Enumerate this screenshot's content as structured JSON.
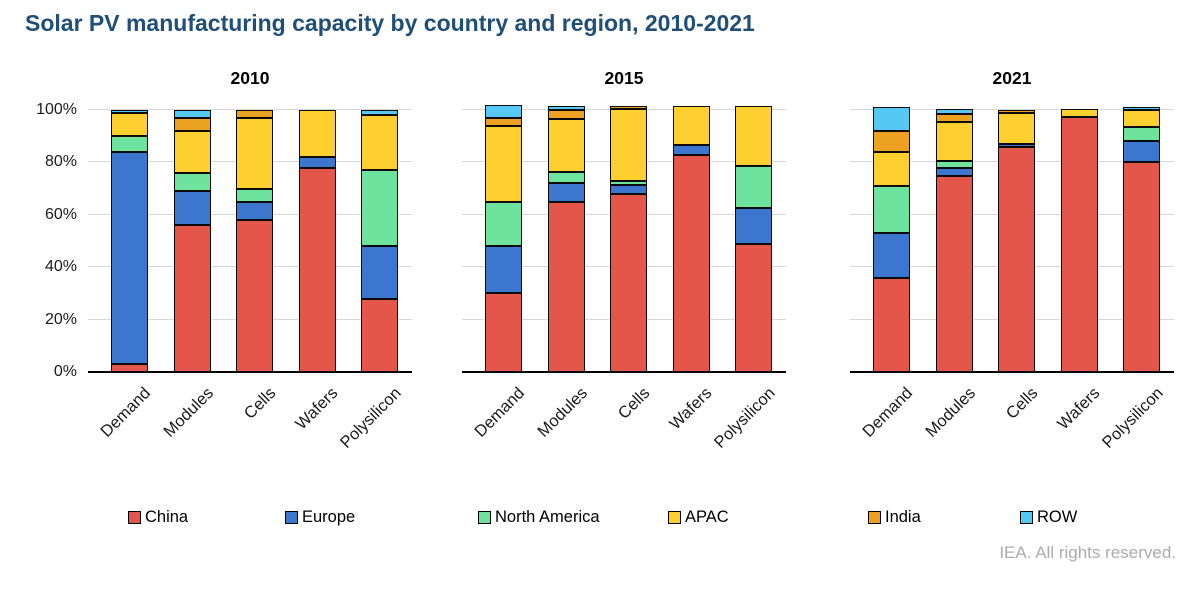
{
  "page": {
    "title": "Solar PV manufacturing capacity by country and region, 2010-2021",
    "title_color": "#1F4E79",
    "footer": "IEA. All rights reserved."
  },
  "legend": {
    "position": "bottom",
    "items": [
      {
        "label": "China",
        "color": "#E4564A"
      },
      {
        "label": "Europe",
        "color": "#3D76CE"
      },
      {
        "label": "North America",
        "color": "#6DE39E"
      },
      {
        "label": "APAC",
        "color": "#FDD02F"
      },
      {
        "label": "India",
        "color": "#EDA120"
      },
      {
        "label": "ROW",
        "color": "#56C8F4"
      }
    ]
  },
  "chart_data": [
    {
      "type": "bar",
      "stacked": true,
      "title": "2010",
      "unit": "%",
      "xlabel": "",
      "ylabel": "",
      "ylim": [
        0,
        100
      ],
      "yticks": [
        0,
        20,
        40,
        60,
        80,
        100
      ],
      "grid": true,
      "categories": [
        "Demand",
        "Modules",
        "Cells",
        "Wafers",
        "Polysilicon"
      ],
      "series": [
        {
          "name": "China",
          "color": "#E4564A",
          "values": [
            3,
            56,
            58,
            78,
            28
          ]
        },
        {
          "name": "Europe",
          "color": "#3D76CE",
          "values": [
            81,
            13,
            7,
            4,
            20
          ]
        },
        {
          "name": "North America",
          "color": "#6DE39E",
          "values": [
            6,
            7,
            5,
            0,
            29
          ]
        },
        {
          "name": "APAC",
          "color": "#FDD02F",
          "values": [
            9,
            16,
            27,
            18,
            21
          ]
        },
        {
          "name": "India",
          "color": "#EDA120",
          "values": [
            0,
            5,
            3,
            0,
            0
          ]
        },
        {
          "name": "ROW",
          "color": "#56C8F4",
          "values": [
            1,
            3,
            0,
            0,
            2
          ]
        }
      ]
    },
    {
      "type": "bar",
      "stacked": true,
      "title": "2015",
      "unit": "%",
      "xlabel": "",
      "ylabel": "",
      "ylim": [
        0,
        100
      ],
      "yticks": [
        0,
        20,
        40,
        60,
        80,
        100
      ],
      "grid": true,
      "categories": [
        "Demand",
        "Modules",
        "Cells",
        "Wafers",
        "Polysilicon"
      ],
      "series": [
        {
          "name": "China",
          "color": "#E4564A",
          "values": [
            30,
            65,
            68,
            83,
            49
          ]
        },
        {
          "name": "Europe",
          "color": "#3D76CE",
          "values": [
            18,
            7,
            3.5,
            3.5,
            13.5
          ]
        },
        {
          "name": "North America",
          "color": "#6DE39E",
          "values": [
            17,
            4.5,
            1.5,
            0,
            16
          ]
        },
        {
          "name": "APAC",
          "color": "#FDD02F",
          "values": [
            29,
            20,
            27.5,
            15,
            23
          ]
        },
        {
          "name": "India",
          "color": "#EDA120",
          "values": [
            3,
            3.5,
            1,
            0,
            0
          ]
        },
        {
          "name": "ROW",
          "color": "#56C8F4",
          "values": [
            5,
            1.5,
            0,
            0,
            0
          ]
        }
      ]
    },
    {
      "type": "bar",
      "stacked": true,
      "title": "2021",
      "unit": "%",
      "xlabel": "",
      "ylabel": "",
      "ylim": [
        0,
        100
      ],
      "yticks": [
        0,
        20,
        40,
        60,
        80,
        100
      ],
      "grid": true,
      "categories": [
        "Demand",
        "Modules",
        "Cells",
        "Wafers",
        "Polysilicon"
      ],
      "series": [
        {
          "name": "China",
          "color": "#E4564A",
          "values": [
            36,
            75,
            86,
            97.5,
            80
          ]
        },
        {
          "name": "Europe",
          "color": "#3D76CE",
          "values": [
            17,
            3,
            1,
            0,
            8
          ]
        },
        {
          "name": "North America",
          "color": "#6DE39E",
          "values": [
            18,
            2.5,
            0,
            0,
            5.5
          ]
        },
        {
          "name": "APAC",
          "color": "#FDD02F",
          "values": [
            13,
            15,
            12,
            3,
            6.5
          ]
        },
        {
          "name": "India",
          "color": "#EDA120",
          "values": [
            8,
            3,
            1,
            0,
            0
          ]
        },
        {
          "name": "ROW",
          "color": "#56C8F4",
          "values": [
            9,
            2,
            0,
            0,
            1
          ]
        }
      ]
    }
  ]
}
